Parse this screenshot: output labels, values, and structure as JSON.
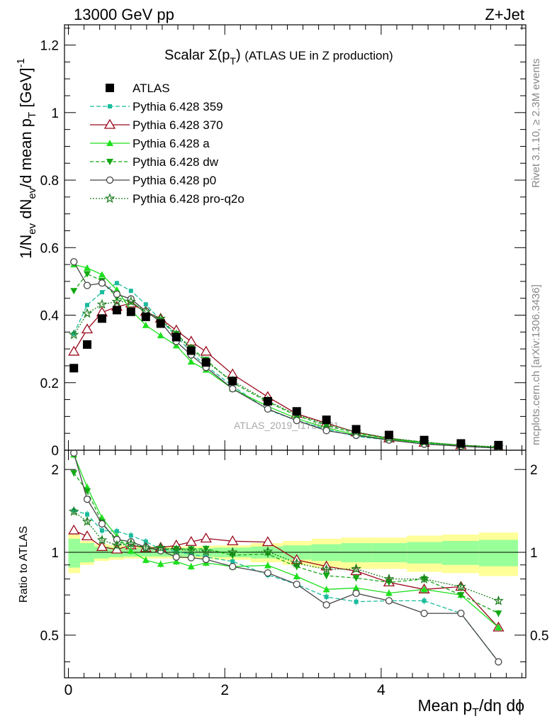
{
  "header": {
    "left": "13000 GeV pp",
    "right": "Z+Jet"
  },
  "side_labels": {
    "rivet": "Rivet 3.1.10, ≥ 2.3M events",
    "mcplots": "mcplots.cern.ch [arXiv:1306.3436]"
  },
  "watermark": "ATLAS_2019_I1736531",
  "chart_data": {
    "type": "scatter",
    "title": "Scalar Σ(p_T) (ATLAS UE in Z production)",
    "xlabel": "Mean p_T/dη dϕ",
    "ylabel": "1/N_ev dN_ev/d mean p_T [GeV]^-1",
    "ratio_ylabel": "Ratio to ATLAS",
    "xlim": [
      -0.05,
      5.85
    ],
    "ylim": [
      0,
      1.26
    ],
    "ratio_ylim": [
      0.35,
      2.35
    ],
    "x_ticks": [
      0,
      2,
      4
    ],
    "y_ticks": [
      0,
      0.2,
      0.4,
      0.6,
      0.8,
      1,
      1.2
    ],
    "ratio_y_ticks": [
      0.5,
      1,
      2
    ],
    "legend_position": "top-left",
    "x": [
      0.07,
      0.24,
      0.43,
      0.62,
      0.8,
      0.99,
      1.18,
      1.38,
      1.57,
      1.76,
      2.1,
      2.55,
      2.92,
      3.3,
      3.68,
      4.1,
      4.55,
      5.02,
      5.5
    ],
    "data": {
      "name": "ATLAS",
      "values": [
        0.243,
        0.313,
        0.39,
        0.415,
        0.41,
        0.395,
        0.375,
        0.335,
        0.295,
        0.26,
        0.205,
        0.145,
        0.115,
        0.09,
        0.062,
        0.045,
        0.03,
        0.02,
        0.015
      ]
    },
    "band_edges": [
      0.0,
      0.15,
      0.33,
      0.52,
      0.71,
      0.9,
      1.09,
      1.28,
      1.47,
      1.66,
      1.86,
      2.33,
      2.74,
      3.11,
      3.49,
      3.88,
      4.33,
      4.78,
      5.25,
      5.75
    ],
    "band_green": [
      0.12,
      0.08,
      0.05,
      0.04,
      0.035,
      0.035,
      0.035,
      0.035,
      0.035,
      0.035,
      0.04,
      0.05,
      0.06,
      0.07,
      0.08,
      0.08,
      0.09,
      0.1,
      0.11
    ],
    "band_yellow": [
      0.16,
      0.1,
      0.07,
      0.06,
      0.05,
      0.05,
      0.05,
      0.05,
      0.05,
      0.055,
      0.06,
      0.08,
      0.1,
      0.12,
      0.13,
      0.13,
      0.15,
      0.16,
      0.18
    ],
    "series": [
      {
        "name": "Pythia 6.428 359",
        "color": "#1abc9c",
        "dash": "6,3",
        "marker": "smallsquare",
        "values": [
          0.345,
          0.43,
          0.468,
          0.495,
          0.472,
          0.432,
          0.385,
          0.338,
          0.29,
          0.25,
          0.19,
          0.12,
          0.088,
          0.062,
          0.041,
          0.03,
          0.02,
          0.012,
          0.006
        ]
      },
      {
        "name": "Pythia 6.428 370",
        "color": "#9b0a1e",
        "dash": "",
        "marker": "opentriangle",
        "values": [
          0.292,
          0.358,
          0.408,
          0.425,
          0.435,
          0.41,
          0.39,
          0.355,
          0.322,
          0.292,
          0.225,
          0.158,
          0.108,
          0.08,
          0.053,
          0.035,
          0.022,
          0.015,
          0.008
        ]
      },
      {
        "name": "Pythia 6.428 a",
        "color": "#1ee01e",
        "dash": "",
        "marker": "triangle",
        "values": [
          0.55,
          0.54,
          0.52,
          0.475,
          0.415,
          0.37,
          0.34,
          0.31,
          0.262,
          0.238,
          0.182,
          0.13,
          0.094,
          0.066,
          0.046,
          0.032,
          0.022,
          0.014,
          0.008
        ]
      },
      {
        "name": "Pythia 6.428 dw",
        "color": "#13a813",
        "dash": "5,3",
        "marker": "invtriangle",
        "values": [
          0.472,
          0.522,
          0.502,
          0.452,
          0.44,
          0.408,
          0.385,
          0.345,
          0.303,
          0.268,
          0.2,
          0.143,
          0.102,
          0.074,
          0.05,
          0.035,
          0.024,
          0.014,
          0.009
        ]
      },
      {
        "name": "Pythia 6.428 p0",
        "color": "#444444",
        "dash": "",
        "marker": "opencircle",
        "values": [
          0.558,
          0.488,
          0.495,
          0.462,
          0.448,
          0.412,
          0.38,
          0.322,
          0.282,
          0.245,
          0.182,
          0.122,
          0.088,
          0.058,
          0.044,
          0.03,
          0.018,
          0.012,
          0.006
        ]
      },
      {
        "name": "Pythia 6.428 pro-q2o",
        "color": "#1e7d1e",
        "dash": "2,2",
        "marker": "star",
        "values": [
          0.342,
          0.405,
          0.432,
          0.44,
          0.44,
          0.41,
          0.39,
          0.342,
          0.3,
          0.262,
          0.205,
          0.146,
          0.105,
          0.078,
          0.054,
          0.036,
          0.024,
          0.015,
          0.01
        ]
      }
    ]
  }
}
